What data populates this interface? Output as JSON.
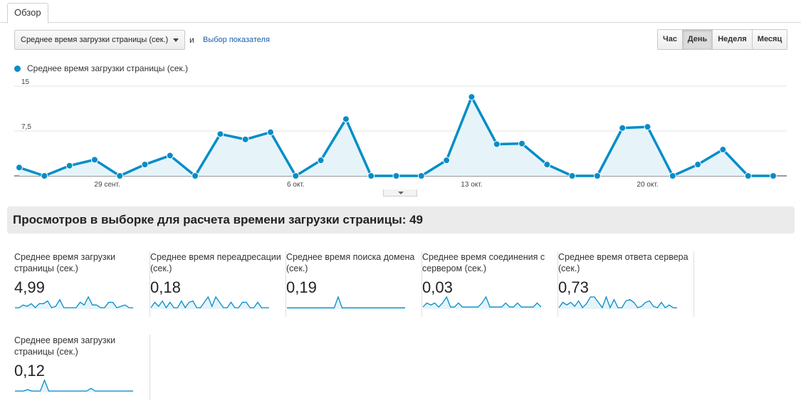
{
  "tabs": {
    "overview": "Обзор"
  },
  "metric_selector": {
    "selected": "Среднее время загрузки страницы (сек.)",
    "and_text": "и",
    "choose_metric_link": "Выбор показателя"
  },
  "time_buttons": [
    {
      "label": "Час",
      "active": false
    },
    {
      "label": "День",
      "active": true
    },
    {
      "label": "Неделя",
      "active": false
    },
    {
      "label": "Месяц",
      "active": false
    }
  ],
  "colors": {
    "series": "#058dc7",
    "fill": "#e6f4fa"
  },
  "chart_data": {
    "type": "area",
    "series": [
      {
        "name": "Среднее время загрузки страницы (сек.)",
        "values": [
          1.4,
          0,
          1.7,
          2.7,
          0,
          1.9,
          3.4,
          0,
          7.0,
          6.1,
          7.3,
          0,
          2.6,
          9.5,
          0,
          0,
          0,
          2.6,
          13.2,
          5.3,
          5.4,
          1.9,
          0,
          0,
          8.0,
          8.2,
          0,
          1.9,
          4.4,
          0,
          0
        ]
      }
    ],
    "y_ticks": [
      "15",
      "7,5"
    ],
    "ylim": [
      0,
      15
    ],
    "x_ticks": [
      {
        "index": 3.5,
        "label": "29 сент."
      },
      {
        "index": 11,
        "label": "6 окт."
      },
      {
        "index": 18,
        "label": "13 окт."
      },
      {
        "index": 25,
        "label": "20 окт."
      }
    ],
    "grid": true,
    "legend_position": "top-left"
  },
  "summary": {
    "text": "Просмотров в выборке для расчета времени загрузки страницы: 49"
  },
  "sparklines": [
    {
      "label": "Среднее время загрузки страницы (сек.)",
      "value": "4,99",
      "values": [
        1,
        1,
        3,
        2,
        4,
        1,
        4,
        4,
        6,
        1,
        2,
        7,
        1,
        1,
        1,
        1,
        5,
        3,
        9,
        3,
        3,
        1,
        1,
        5,
        5,
        1,
        2,
        3,
        1,
        1
      ]
    },
    {
      "label": "Среднее время переадресации (сек.)",
      "value": "0,18",
      "values": [
        1,
        5,
        2,
        6,
        1,
        5,
        1,
        1,
        6,
        1,
        5,
        6,
        1,
        1,
        5,
        9,
        2,
        9,
        5,
        1,
        1,
        5,
        1,
        1,
        5,
        5,
        1,
        1,
        5,
        1,
        1,
        1
      ]
    },
    {
      "label": "Среднее время поиска домена (сек.)",
      "value": "0,19",
      "values": [
        1,
        1,
        1,
        1,
        1,
        1,
        1,
        1,
        1,
        1,
        1,
        1,
        1,
        10,
        1,
        1,
        1,
        1,
        1,
        1,
        1,
        1,
        1,
        1,
        1,
        1,
        1,
        1,
        1,
        1,
        1
      ]
    },
    {
      "label": "Среднее время соединения с сервером (сек.)",
      "value": "0,03",
      "values": [
        1,
        3,
        2,
        3,
        1,
        3,
        6,
        1,
        1,
        3,
        1,
        1,
        1,
        1,
        1,
        3,
        6,
        1,
        1,
        1,
        1,
        3,
        1,
        1,
        3,
        1,
        1,
        1,
        1,
        3,
        1
      ]
    },
    {
      "label": "Среднее время ответа сервера (сек.)",
      "value": "0,73",
      "values": [
        1,
        5,
        3,
        5,
        2,
        6,
        1,
        4,
        9,
        9,
        5,
        1,
        9,
        1,
        7,
        1,
        1,
        6,
        7,
        5,
        1,
        2,
        5,
        6,
        2,
        1,
        5,
        1,
        3,
        1,
        1
      ]
    },
    {
      "label": "Среднее время загрузки страницы (сек.)",
      "value": "0,12",
      "values": [
        1,
        1,
        1,
        2,
        1,
        1,
        1,
        9,
        1,
        1,
        1,
        1,
        1,
        1,
        1,
        1,
        1,
        1,
        3,
        1,
        1,
        1,
        1,
        1,
        1,
        1,
        1,
        1,
        1
      ]
    }
  ]
}
